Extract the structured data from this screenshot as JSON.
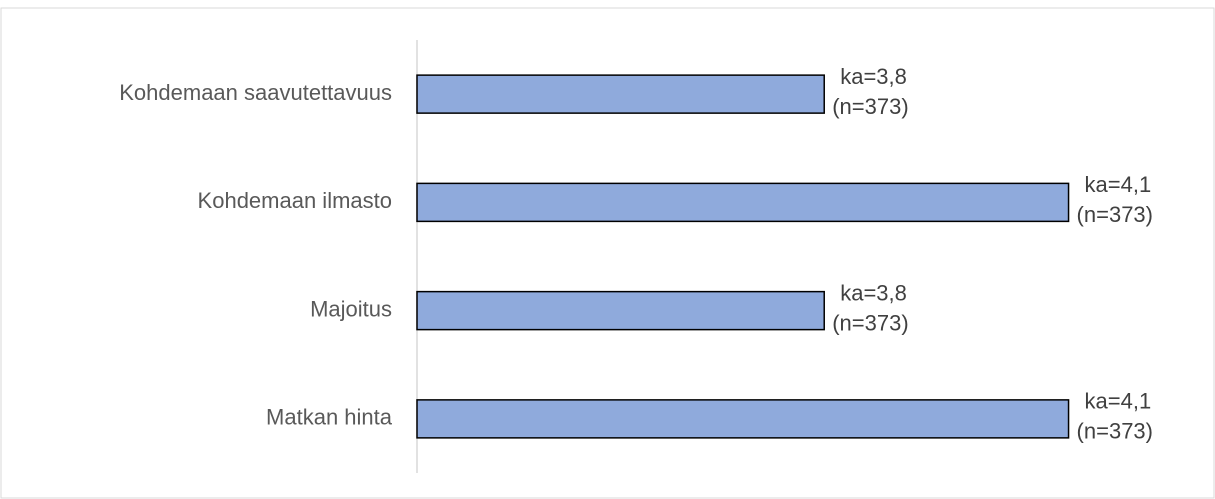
{
  "chart_data": {
    "type": "hbar",
    "categories": [
      "Kohdemaan saavutettavuus",
      "Kohdemaan ilmasto",
      "Majoitus",
      "Matkan hinta"
    ],
    "values": [
      3.8,
      4.1,
      3.8,
      4.1
    ],
    "value_labels": [
      "ka=3,8",
      "ka=4,1",
      "ka=3,8",
      "ka=4,1"
    ],
    "n_labels": [
      "(n=373)",
      "(n=373)",
      "(n=373)",
      "(n=373)"
    ],
    "color": "#8faadc",
    "xlim": [
      3.3,
      4.2
    ]
  }
}
